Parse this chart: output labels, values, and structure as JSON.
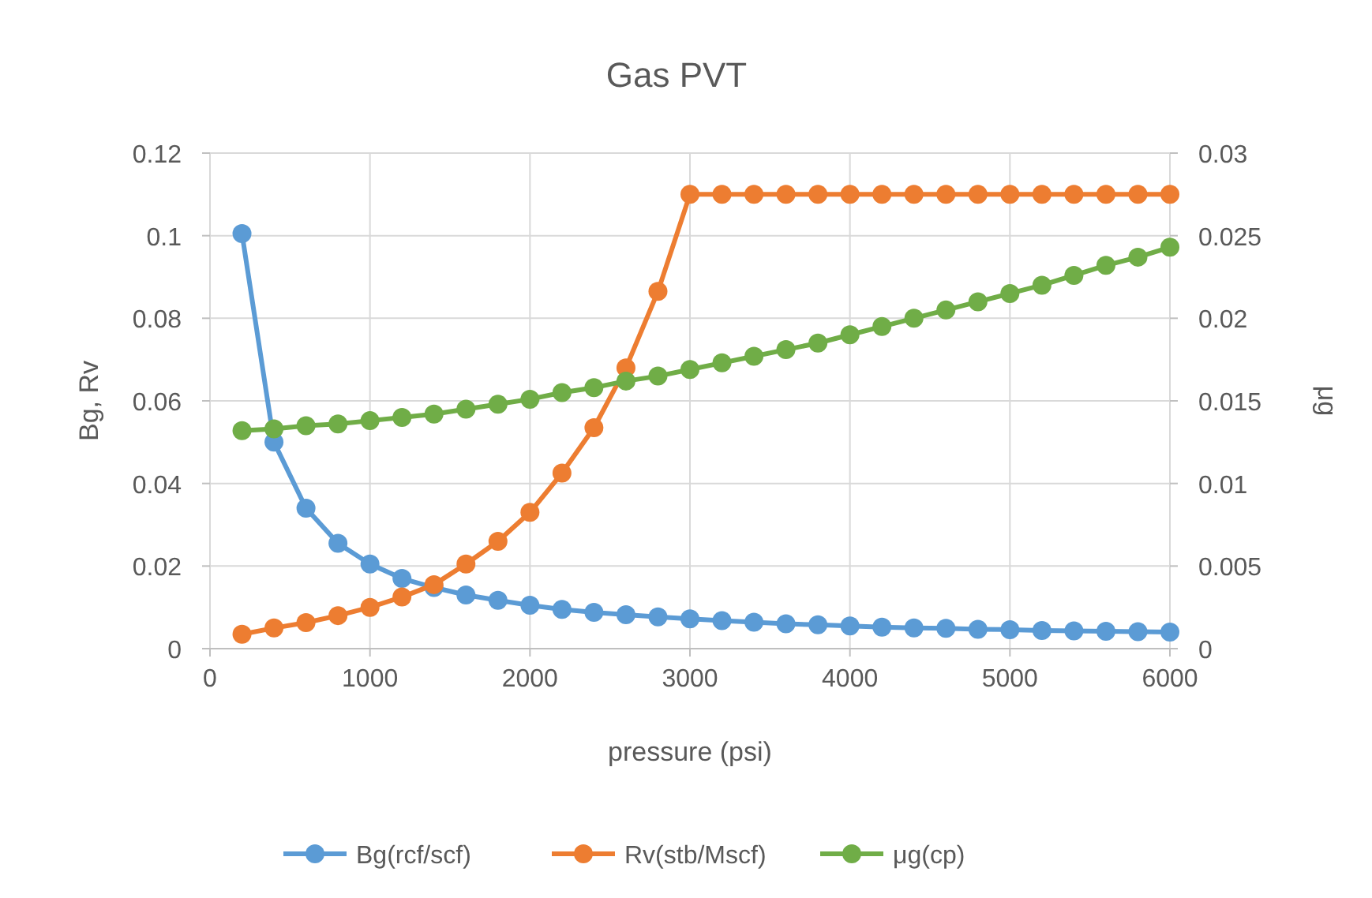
{
  "chart_data": {
    "type": "line",
    "title": "Gas PVT",
    "xlabel": "pressure (psi)",
    "ylabel": "Bg, Rv",
    "y2label": "μg",
    "x": [
      200,
      400,
      600,
      800,
      1000,
      1200,
      1400,
      1600,
      1800,
      2000,
      2200,
      2400,
      2600,
      2800,
      3000,
      3200,
      3400,
      3600,
      3800,
      4000,
      4200,
      4400,
      4600,
      4800,
      5000,
      5200,
      5400,
      5600,
      5800,
      6000
    ],
    "series": [
      {
        "name": "Bg(rcf/scf)",
        "color": "#5b9bd5",
        "values": [
          0.1005,
          0.05,
          0.034,
          0.0255,
          0.0205,
          0.017,
          0.0148,
          0.013,
          0.0117,
          0.0105,
          0.0095,
          0.0088,
          0.0082,
          0.0077,
          0.0072,
          0.0068,
          0.0064,
          0.006,
          0.0058,
          0.0055,
          0.0052,
          0.005,
          0.0049,
          0.0047,
          0.0046,
          0.0044,
          0.0043,
          0.0042,
          0.0041,
          0.004
        ]
      },
      {
        "name": "Rv(stb/Mscf)",
        "color": "#ed7d31",
        "values": [
          0.0035,
          0.005,
          0.0063,
          0.008,
          0.01,
          0.0125,
          0.0155,
          0.0205,
          0.026,
          0.033,
          0.0425,
          0.0535,
          0.068,
          0.0865,
          0.11,
          0.11,
          0.11,
          0.11,
          0.11,
          0.11,
          0.11,
          0.11,
          0.11,
          0.11,
          0.11,
          0.11,
          0.11,
          0.11,
          0.11,
          0.11
        ]
      },
      {
        "name": "μg(cp)",
        "color": "#70ad47",
        "axis": "y2",
        "values": [
          0.0132,
          0.0133,
          0.0135,
          0.0136,
          0.0138,
          0.014,
          0.0142,
          0.0145,
          0.0148,
          0.0151,
          0.0155,
          0.0158,
          0.0162,
          0.0165,
          0.0169,
          0.0173,
          0.0177,
          0.0181,
          0.0185,
          0.019,
          0.0195,
          0.02,
          0.0205,
          0.021,
          0.0215,
          0.022,
          0.0226,
          0.0232,
          0.0237,
          0.0243
        ]
      }
    ],
    "xlim": [
      0,
      6000
    ],
    "xticks": [
      0,
      1000,
      2000,
      3000,
      4000,
      5000,
      6000
    ],
    "ylim": [
      0,
      0.12
    ],
    "yticks": [
      0,
      0.02,
      0.04,
      0.06,
      0.08,
      0.1,
      0.12
    ],
    "y2lim": [
      0,
      0.03
    ],
    "y2ticks": [
      0,
      0.005,
      0.01,
      0.015,
      0.02,
      0.025,
      0.03
    ],
    "grid": true,
    "legend": "bottom",
    "marker": "circle",
    "line_style": "solid"
  }
}
